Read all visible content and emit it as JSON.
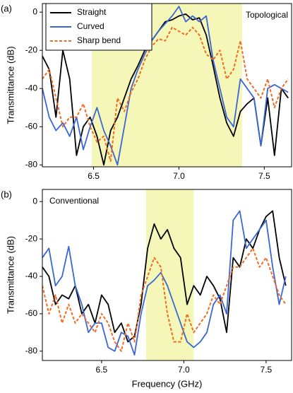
{
  "chart_data": [
    {
      "type": "line",
      "panel_label": "(a)",
      "annotation": "Topological",
      "ylabel": "Transmittance (dB)",
      "highlight": [
        6.49,
        7.37
      ],
      "highlight_color": "#f4f7b8",
      "legend": "upper left",
      "xlim": [
        6.2,
        7.66
      ],
      "ylim": [
        -81,
        4.5
      ],
      "xticks": [
        6.5,
        {
          "value": 7,
          "label": "7.0"
        },
        7.5
      ],
      "yticks": [
        0,
        -20,
        -40,
        -60,
        -80
      ],
      "x": [
        6.2,
        6.24,
        6.28,
        6.32,
        6.36,
        6.4,
        6.44,
        6.48,
        6.52,
        6.56,
        6.6,
        6.64,
        6.68,
        6.72,
        6.76,
        6.8,
        6.84,
        6.88,
        6.92,
        6.96,
        7.0,
        7.04,
        7.08,
        7.12,
        7.16,
        7.2,
        7.24,
        7.28,
        7.32,
        7.36,
        7.4,
        7.44,
        7.48,
        7.52,
        7.56,
        7.6,
        7.64
      ],
      "series": [
        {
          "name": "Straight",
          "color": "#000000",
          "linestyle": "solid",
          "values": [
            -23,
            -30,
            -55,
            -20,
            -35,
            -75,
            -60,
            -55,
            -65,
            -80,
            -62,
            -55,
            -45,
            -35,
            -28,
            -20,
            -15,
            -10,
            -5,
            -4,
            -2,
            -1,
            -4,
            -3,
            -12,
            -28,
            -45,
            -58,
            -65,
            -52,
            -48,
            -45,
            -70,
            -45,
            -75,
            -40,
            -45
          ]
        },
        {
          "name": "Curved",
          "color": "#3a66d6",
          "linestyle": "solid",
          "values": [
            -40,
            -55,
            -62,
            -58,
            -65,
            -55,
            -72,
            -60,
            -50,
            -62,
            -70,
            -80,
            -60,
            -40,
            -30,
            -22,
            -15,
            -10,
            -6,
            -2,
            3,
            -5,
            -2,
            -5,
            -2,
            -25,
            -40,
            -55,
            -60,
            -35,
            -40,
            -45,
            -70,
            -40,
            -38,
            -40,
            -42
          ]
        },
        {
          "name": "Sharp bend",
          "color": "#f26b21",
          "linestyle": "dashed",
          "values": [
            -35,
            -30,
            -45,
            -60,
            -55,
            -55,
            -48,
            -60,
            -68,
            -65,
            -78,
            -45,
            -52,
            -42,
            -35,
            -25,
            -18,
            -14,
            -15,
            -8,
            -10,
            -12,
            -8,
            -12,
            -22,
            -25,
            -20,
            -35,
            -30,
            -15,
            -35,
            -40,
            -45,
            -35,
            -50,
            -40,
            -35
          ]
        }
      ]
    },
    {
      "type": "line",
      "panel_label": "(b)",
      "annotation": "Conventional",
      "ylabel": "Transmittance (dB)",
      "xlabel": "Frequency (GHz)",
      "highlight": [
        6.77,
        7.06
      ],
      "highlight_color": "#f4f7b8",
      "xlim": [
        6.14,
        7.655
      ],
      "ylim": [
        -85,
        6.5
      ],
      "xticks": [
        6.5,
        {
          "value": 7,
          "label": "7.0"
        },
        7.5
      ],
      "yticks": [
        0,
        -20,
        -40,
        -60,
        -80
      ],
      "x": [
        6.14,
        6.18,
        6.22,
        6.26,
        6.3,
        6.34,
        6.38,
        6.42,
        6.46,
        6.5,
        6.54,
        6.58,
        6.62,
        6.66,
        6.7,
        6.74,
        6.78,
        6.82,
        6.86,
        6.9,
        6.94,
        6.98,
        7.02,
        7.06,
        7.1,
        7.14,
        7.18,
        7.22,
        7.26,
        7.3,
        7.34,
        7.38,
        7.42,
        7.46,
        7.5,
        7.54,
        7.58,
        7.62
      ],
      "series": [
        {
          "color": "#000000",
          "linestyle": "solid",
          "values": [
            -35,
            -40,
            -55,
            -50,
            -52,
            -45,
            -60,
            -55,
            -65,
            -50,
            -55,
            -70,
            -65,
            -75,
            -72,
            -55,
            -25,
            -12,
            -20,
            -15,
            -25,
            -30,
            -55,
            -45,
            -50,
            -40,
            -45,
            -52,
            -70,
            -30,
            -35,
            -20,
            -25,
            -15,
            -8,
            -5,
            -30,
            -45
          ]
        },
        {
          "color": "#3a66d6",
          "linestyle": "solid",
          "values": [
            -30,
            -25,
            -45,
            -40,
            -24,
            -45,
            -55,
            -70,
            -65,
            -65,
            -78,
            -80,
            -70,
            -72,
            -82,
            -60,
            -45,
            -42,
            -38,
            -45,
            -55,
            -65,
            -75,
            -78,
            -75,
            -70,
            -55,
            -50,
            -60,
            -10,
            -5,
            -25,
            -20,
            -15,
            -10,
            -35,
            -55,
            -40
          ]
        },
        {
          "color": "#f26b21",
          "linestyle": "dashed",
          "values": [
            -45,
            -60,
            -50,
            -65,
            -55,
            -65,
            -60,
            -65,
            -70,
            -60,
            -65,
            -75,
            -80,
            -65,
            -75,
            -50,
            -40,
            -30,
            -35,
            -60,
            -75,
            -75,
            -60,
            -70,
            -65,
            -60,
            -50,
            -55,
            -45,
            -35,
            -35,
            -30,
            -25,
            -35,
            -30,
            -40,
            -50,
            -55
          ]
        }
      ]
    }
  ]
}
